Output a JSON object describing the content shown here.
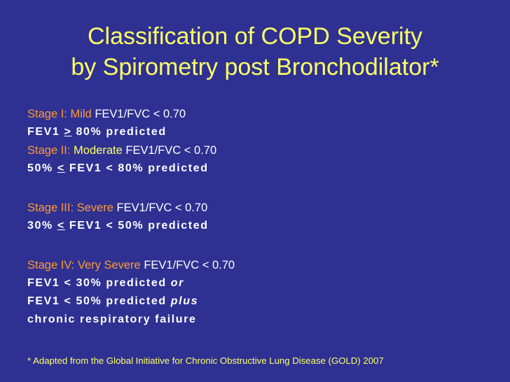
{
  "title": {
    "line1": "Classification of COPD Severity",
    "line2": "by Spirometry post Bronchodilator*"
  },
  "stages": {
    "s1": {
      "label": "Stage I: Mild",
      "ratio": "FEV1/FVC < 0.70",
      "criteria": {
        "a": "FEV1 ",
        "b": ">",
        "c": " 80% predicted"
      }
    },
    "s2": {
      "label_a": "Stage II:",
      "label_b": " Moderate",
      "ratio": "FEV1/FVC < 0.70",
      "criteria": {
        "a": "50% ",
        "b": "<",
        "c": " FEV1 < 80% predicted"
      }
    },
    "s3": {
      "label": "Stage III: Severe",
      "ratio": "FEV1/FVC < 0.70",
      "criteria": {
        "a": "30% ",
        "b": "<",
        "c": " FEV1 < 50% predicted"
      }
    },
    "s4": {
      "label": "Stage IV: Very Severe",
      "ratio": "FEV1/FVC < 0.70",
      "criteria1": {
        "a": "FEV1 < 30% predicted ",
        "b": "or"
      },
      "criteria2": {
        "a": "FEV1 < 50% predicted ",
        "b": "plus"
      },
      "criteria3": "chronic respiratory failure"
    }
  },
  "footnote": "* Adapted from the Global Initiative for Chronic Obstructive Lung Disease (GOLD) 2007",
  "colors": {
    "background": "#2e3192",
    "title": "#ffff66",
    "stage_label": "#ff9933",
    "body_text": "#ffffff"
  }
}
